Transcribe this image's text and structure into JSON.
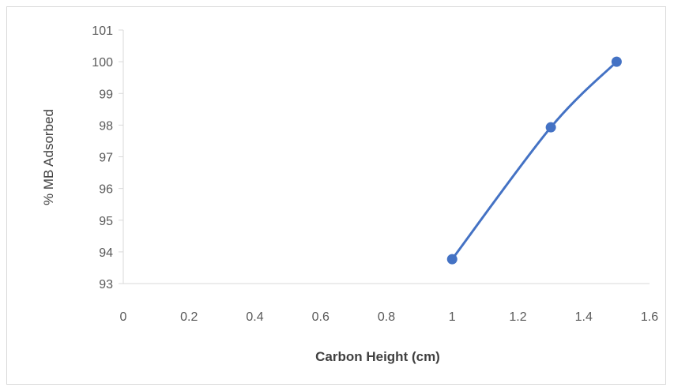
{
  "chart_data": {
    "type": "scatter",
    "title": "",
    "xlabel": "Carbon Height (cm)",
    "ylabel": "% MB Adsorbed",
    "xlim": [
      0,
      1.6
    ],
    "ylim": [
      93,
      101
    ],
    "x_ticks": [
      "0",
      "0.2",
      "0.4",
      "0.6",
      "0.8",
      "1",
      "1.2",
      "1.4",
      "1.6"
    ],
    "y_ticks": [
      "93",
      "94",
      "95",
      "96",
      "97",
      "98",
      "99",
      "100",
      "101"
    ],
    "grid": false,
    "legend": "none",
    "series": [
      {
        "color": "#4472c4",
        "line": "smooth",
        "points": [
          {
            "x": 1.0,
            "y": 93.77
          },
          {
            "x": 1.3,
            "y": 97.93
          },
          {
            "x": 1.5,
            "y": 100.0
          }
        ]
      }
    ],
    "colors": {
      "series": "#4472c4",
      "axis": "#d9d9d9",
      "tick_text": "#595959",
      "title_text": "#404040"
    }
  }
}
